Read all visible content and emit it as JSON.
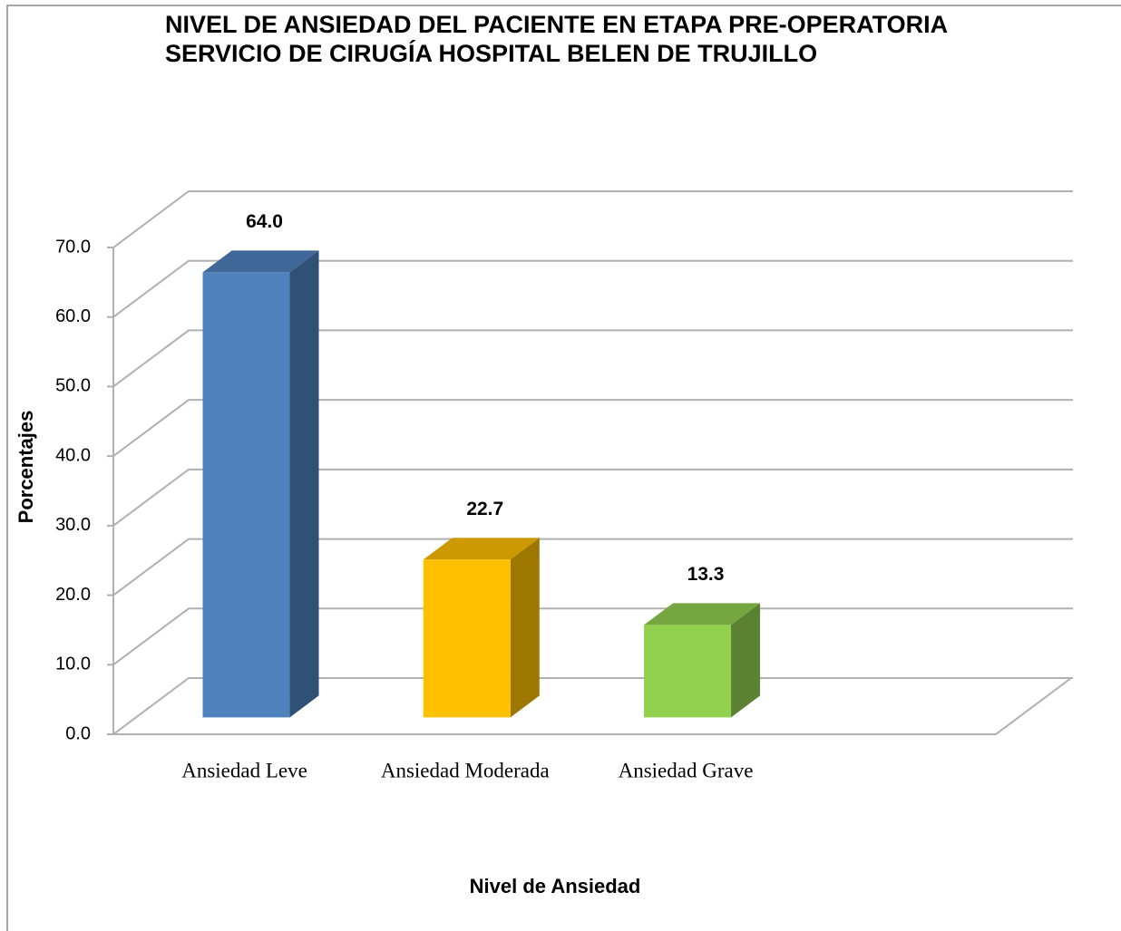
{
  "chart_data": {
    "type": "bar3d",
    "title": "NIVEL DE ANSIEDAD DEL PACIENTE EN ETAPA PRE-OPERATORIA",
    "subtitle": "SERVICIO DE CIRUGÍA HOSPITAL BELEN DE TRUJILLO",
    "ylabel": "Porcentajes",
    "xlabel": "Nivel de Ansiedad",
    "categories": [
      "Ansiedad Leve",
      "Ansiedad Moderada",
      "Ansiedad Grave"
    ],
    "values": [
      64.0,
      22.7,
      13.3
    ],
    "value_labels": [
      "64.0",
      "22.7",
      "13.3"
    ],
    "colors": [
      "#4f81bd",
      "#ffc000",
      "#92d050"
    ],
    "ylim": [
      0,
      70
    ],
    "yticks": [
      {
        "value": 0,
        "label": "0.0"
      },
      {
        "value": 10,
        "label": "10.0"
      },
      {
        "value": 20,
        "label": "20.0"
      },
      {
        "value": 30,
        "label": "30.0"
      },
      {
        "value": 40,
        "label": "40.0"
      },
      {
        "value": 50,
        "label": "50.0"
      },
      {
        "value": 60,
        "label": "60.0"
      },
      {
        "value": 70,
        "label": "70.0"
      }
    ],
    "grid": true
  }
}
